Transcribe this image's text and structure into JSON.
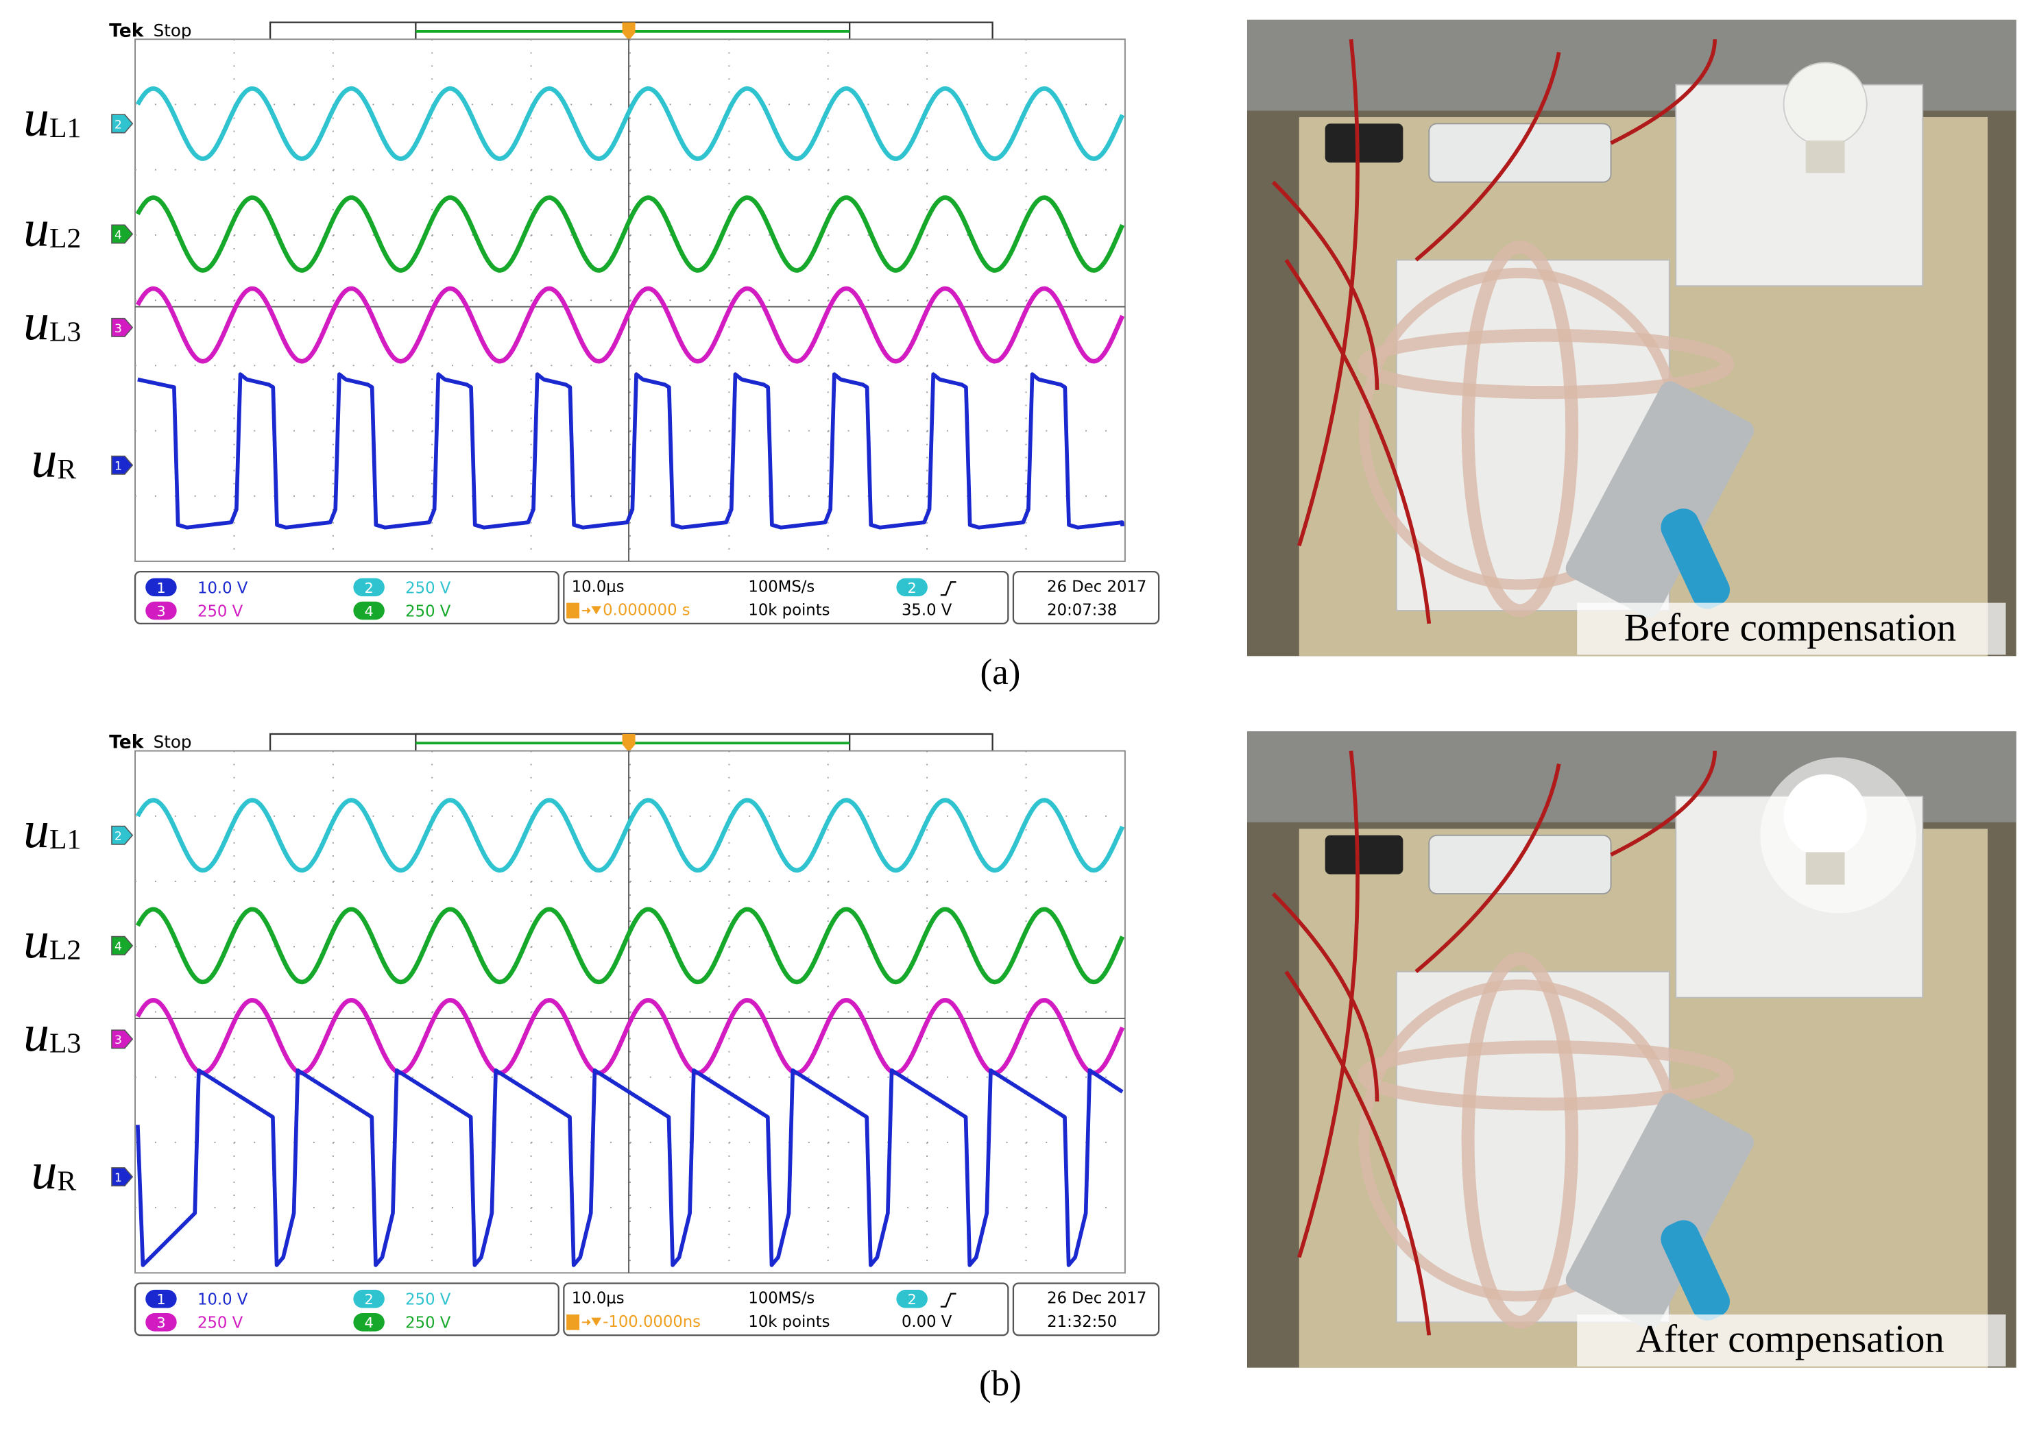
{
  "panels": [
    {
      "caption": "(a)",
      "scope": {
        "brand": "Tek",
        "status": "Stop",
        "scale_marker": "10μs",
        "traces": [
          {
            "symbol": "u",
            "subscript": "L1",
            "marker": "2"
          },
          {
            "symbol": "u",
            "subscript": "L2",
            "marker": "4"
          },
          {
            "symbol": "u",
            "subscript": "L3",
            "marker": "3"
          },
          {
            "symbol": "u",
            "subscript": "R",
            "marker": "1"
          }
        ],
        "readout": {
          "channels": [
            {
              "number": "1",
              "scale": "10.0 V"
            },
            {
              "number": "2",
              "scale": "250 V"
            },
            {
              "number": "3",
              "scale": "250 V"
            },
            {
              "number": "4",
              "scale": "250 V"
            }
          ],
          "timebase": "10.0μs",
          "trigger_position": "0.000000 s",
          "sample_rate": "100MS/s",
          "record_length": "10k points",
          "trigger_source": "2",
          "trigger_level": "35.0 V",
          "date": "26 Dec 2017",
          "time": "20:07:38"
        }
      },
      "photo_label": "Before compensation"
    },
    {
      "caption": "(b)",
      "scope": {
        "brand": "Tek",
        "status": "Stop",
        "scale_marker": "10μs",
        "traces": [
          {
            "symbol": "u",
            "subscript": "L1",
            "marker": "2"
          },
          {
            "symbol": "u",
            "subscript": "L2",
            "marker": "4"
          },
          {
            "symbol": "u",
            "subscript": "L3",
            "marker": "3"
          },
          {
            "symbol": "u",
            "subscript": "R",
            "marker": "1"
          }
        ],
        "readout": {
          "channels": [
            {
              "number": "1",
              "scale": "10.0 V"
            },
            {
              "number": "2",
              "scale": "250 V"
            },
            {
              "number": "3",
              "scale": "250 V"
            },
            {
              "number": "4",
              "scale": "250 V"
            }
          ],
          "timebase": "10.0μs",
          "trigger_position": "-100.0000ns",
          "sample_rate": "100MS/s",
          "record_length": "10k points",
          "trigger_source": "2",
          "trigger_level": "0.00 V",
          "date": "26 Dec 2017",
          "time": "21:32:50"
        }
      },
      "photo_label": "After compensation"
    }
  ]
}
